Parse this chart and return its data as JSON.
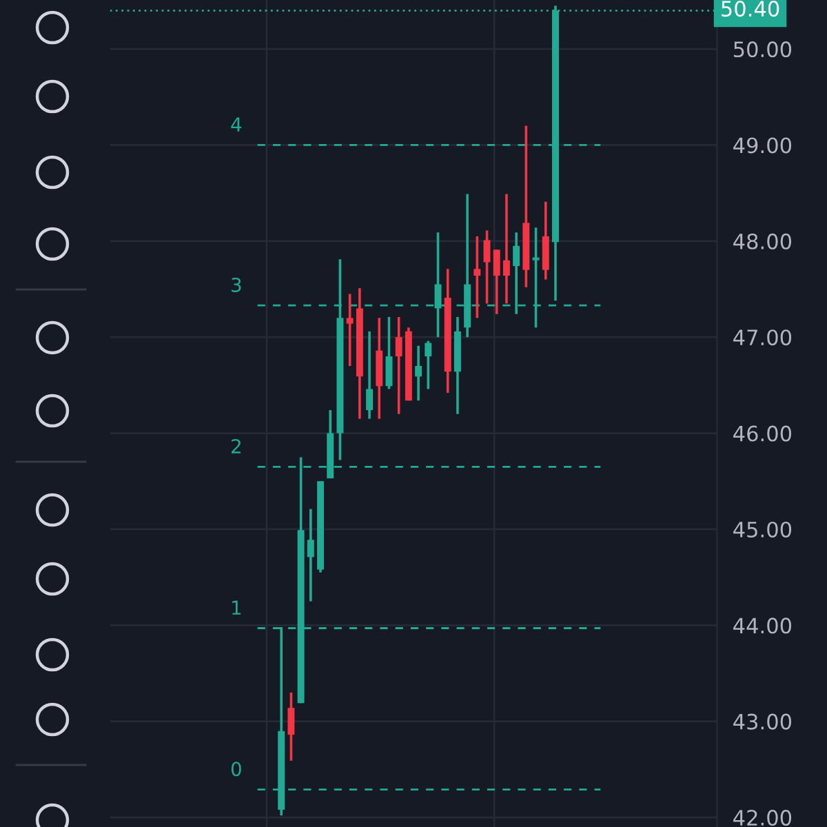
{
  "chart_data": {
    "type": "candlestick",
    "categories": [
      null,
      null,
      null,
      null,
      null,
      null,
      null,
      null,
      null,
      null,
      null,
      null,
      null,
      null,
      null,
      null,
      null,
      null,
      null,
      null,
      null,
      null,
      null,
      null,
      null,
      null,
      null,
      null,
      null,
      null,
      null,
      null,
      null,
      null,
      null,
      null,
      null,
      null,
      null,
      null,
      null,
      null,
      null,
      null,
      null,
      null,
      null,
      null,
      null,
      null,
      null,
      null,
      null,
      null,
      null,
      null,
      null,
      null,
      null,
      null,
      null,
      null
    ],
    "ohlc": [
      null,
      null,
      null,
      null,
      null,
      null,
      null,
      null,
      null,
      null,
      null,
      null,
      null,
      null,
      null,
      null,
      null,
      [
        42.08,
        43.98,
        42.02,
        42.9
      ],
      [
        43.14,
        43.3,
        42.59,
        42.86
      ],
      [
        43.19,
        45.75,
        43.19,
        44.99
      ],
      [
        44.71,
        45.21,
        44.25,
        44.89
      ],
      [
        44.58,
        45.5,
        44.55,
        45.5
      ],
      [
        45.53,
        46.24,
        45.53,
        46.0
      ],
      [
        46.0,
        47.81,
        45.72,
        47.2
      ],
      [
        47.2,
        47.45,
        46.7,
        47.14
      ],
      [
        47.3,
        47.51,
        46.15,
        46.59
      ],
      [
        46.24,
        47.06,
        46.15,
        46.46
      ],
      [
        46.86,
        47.2,
        46.15,
        46.49
      ],
      [
        46.49,
        47.21,
        46.46,
        46.8
      ],
      [
        47.0,
        47.21,
        46.2,
        46.8
      ],
      [
        47.06,
        47.1,
        46.34,
        46.34
      ],
      [
        46.59,
        46.91,
        46.34,
        46.7
      ],
      [
        46.8,
        46.96,
        46.46,
        46.94
      ],
      [
        47.3,
        48.09,
        47.0,
        47.55
      ],
      [
        47.41,
        47.71,
        46.42,
        46.64
      ],
      [
        46.64,
        47.21,
        46.2,
        47.06
      ],
      [
        47.1,
        48.49,
        47.0,
        47.55
      ],
      [
        47.71,
        48.05,
        47.2,
        47.64
      ],
      [
        48.01,
        48.11,
        47.35,
        47.78
      ],
      [
        47.91,
        47.91,
        47.24,
        47.64
      ],
      [
        47.8,
        48.49,
        47.35,
        47.64
      ],
      [
        47.74,
        48.09,
        47.24,
        47.95
      ],
      [
        48.19,
        49.2,
        47.52,
        47.7
      ],
      [
        47.8,
        48.14,
        47.1,
        47.83
      ],
      [
        48.05,
        48.41,
        47.6,
        47.7
      ],
      [
        47.99,
        50.45,
        47.38,
        50.4
      ],
      null,
      null,
      null,
      null,
      null,
      null,
      null,
      null,
      null,
      null,
      null,
      null,
      null,
      null,
      null,
      null
    ],
    "colors": [
      null,
      null,
      null,
      null,
      null,
      null,
      null,
      null,
      null,
      null,
      null,
      null,
      null,
      null,
      null,
      null,
      null,
      "#22ab94",
      "#f23645",
      "#22ab94",
      "#22ab94",
      "#22ab94",
      "#22ab94",
      "#22ab94",
      "#f23645",
      "#f23645",
      "#22ab94",
      "#f23645",
      "#22ab94",
      "#f23645",
      "#f23645",
      "#22ab94",
      "#22ab94",
      "#22ab94",
      "#f23645",
      "#22ab94",
      "#22ab94",
      "#f23645",
      "#f23645",
      "#f23645",
      "#f23645",
      "#22ab94",
      "#f23645",
      "#22ab94",
      "#f23645",
      "#22ab94",
      null,
      null,
      null,
      null,
      null,
      null,
      null,
      null,
      null,
      null,
      null,
      null,
      null,
      null,
      null,
      null
    ],
    "ylim": [
      41.9,
      50.51
    ],
    "yticks": [
      {
        "value": 42,
        "label": "42.00"
      },
      {
        "value": 43,
        "label": "43.00"
      },
      {
        "value": 44,
        "label": "44.00"
      },
      {
        "value": 45,
        "label": "45.00"
      },
      {
        "value": 46,
        "label": "46.00"
      },
      {
        "value": 47,
        "label": "47.00"
      },
      {
        "value": 48,
        "label": "48.00"
      },
      {
        "value": 49,
        "label": "49.00"
      },
      {
        "value": 50,
        "label": "50.00"
      }
    ],
    "annotations": [
      "0",
      "1",
      "2",
      "3",
      "4"
    ],
    "ref_lines": [
      {
        "axis": "y",
        "value": 42.29,
        "color": "#22ab94",
        "line_style": "dashed"
      },
      {
        "axis": "y",
        "value": 43.97,
        "color": "#22ab94",
        "line_style": "dashed"
      },
      {
        "axis": "y",
        "value": 45.65,
        "color": "#22ab94",
        "line_style": "dashed"
      },
      {
        "axis": "y",
        "value": 47.33,
        "color": "#22ab94",
        "line_style": "dashed"
      },
      {
        "axis": "y",
        "value": 49.0,
        "color": "#22ab94",
        "line_style": "dashed"
      },
      {
        "axis": "y",
        "value": 50.4,
        "label": "50.40",
        "color": "#22ab94",
        "line_style": "dotted"
      }
    ],
    "grid": true,
    "tick_labels": "y"
  }
}
